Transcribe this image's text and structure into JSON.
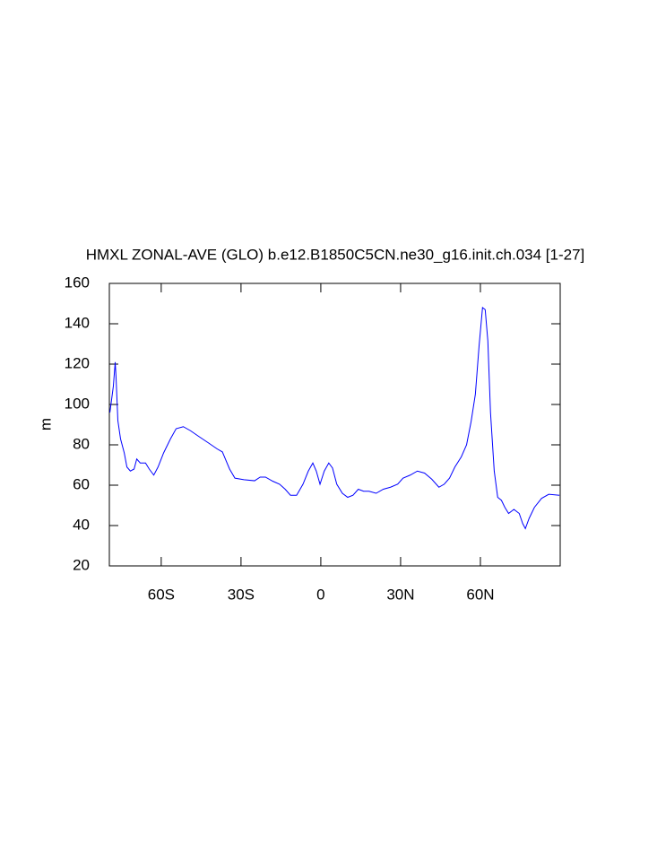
{
  "chart_data": {
    "type": "line",
    "title": "HMXL ZONAL-AVE (GLO) b.e12.B1850C5CN.ne30_g16.init.ch.034 [1-27]",
    "y_label": "m",
    "xlim": [
      -79.5,
      90
    ],
    "ylim": [
      20,
      160
    ],
    "xticks": [
      {
        "value": -60,
        "label": "60S"
      },
      {
        "value": -30,
        "label": "30S"
      },
      0,
      {
        "value": 30,
        "label": "30N"
      },
      {
        "value": 60,
        "label": "60N"
      }
    ],
    "yticks": [
      20,
      40,
      60,
      80,
      100,
      120,
      140,
      160
    ],
    "series": [
      {
        "color": "#0000ff",
        "x": [
          -79.3,
          -78,
          -77.3,
          -77,
          -76.3,
          -75.3,
          -73.9,
          -72.9,
          -71.6,
          -70.2,
          -69.2,
          -67.9,
          -65.9,
          -64.5,
          -62.8,
          -61.2,
          -59.1,
          -56.5,
          -54.4,
          -51.7,
          -49,
          -45.7,
          -42.3,
          -39,
          -37,
          -34.3,
          -32.3,
          -28.9,
          -24.9,
          -22.8,
          -20.8,
          -18.1,
          -15.5,
          -13.4,
          -11.4,
          -9.1,
          -6.7,
          -4.7,
          -3,
          -1.7,
          -0.3,
          1.3,
          3,
          4.4,
          6,
          8.1,
          10.1,
          12.1,
          14.1,
          16.1,
          18.1,
          20.8,
          23.5,
          26.2,
          28.9,
          30.9,
          33.6,
          36.3,
          39,
          41.7,
          44.4,
          46.4,
          48.4,
          50.4,
          52.8,
          54.8,
          56.5,
          58.1,
          59.5,
          60.8,
          61.8,
          62.8,
          63.8,
          65.2,
          66.5,
          67.9,
          69.2,
          70.6,
          72.6,
          74.6,
          75.9,
          76.9,
          78.3,
          80.3,
          83,
          85.7,
          89.7
        ],
        "values": [
          96,
          109,
          121,
          114,
          92,
          83,
          76,
          69,
          67,
          68,
          73,
          71,
          71,
          68,
          65,
          69,
          76,
          83,
          88,
          89,
          87,
          84,
          81,
          78,
          76.5,
          68,
          63.5,
          62.7,
          62.2,
          64,
          64,
          62,
          60.5,
          58,
          55,
          55,
          60.5,
          67,
          71,
          67,
          60.5,
          67,
          71,
          68.5,
          60.5,
          56,
          54,
          55,
          58,
          57,
          57,
          56,
          58,
          59,
          60.5,
          63.5,
          65,
          67,
          66,
          63,
          59,
          60.5,
          63.5,
          69,
          74,
          80,
          91.5,
          105,
          129,
          148,
          147,
          131.5,
          96,
          67,
          54,
          52.5,
          49,
          46,
          48,
          46,
          41,
          38.5,
          43.5,
          49,
          53.5,
          55.5,
          55
        ]
      }
    ]
  }
}
